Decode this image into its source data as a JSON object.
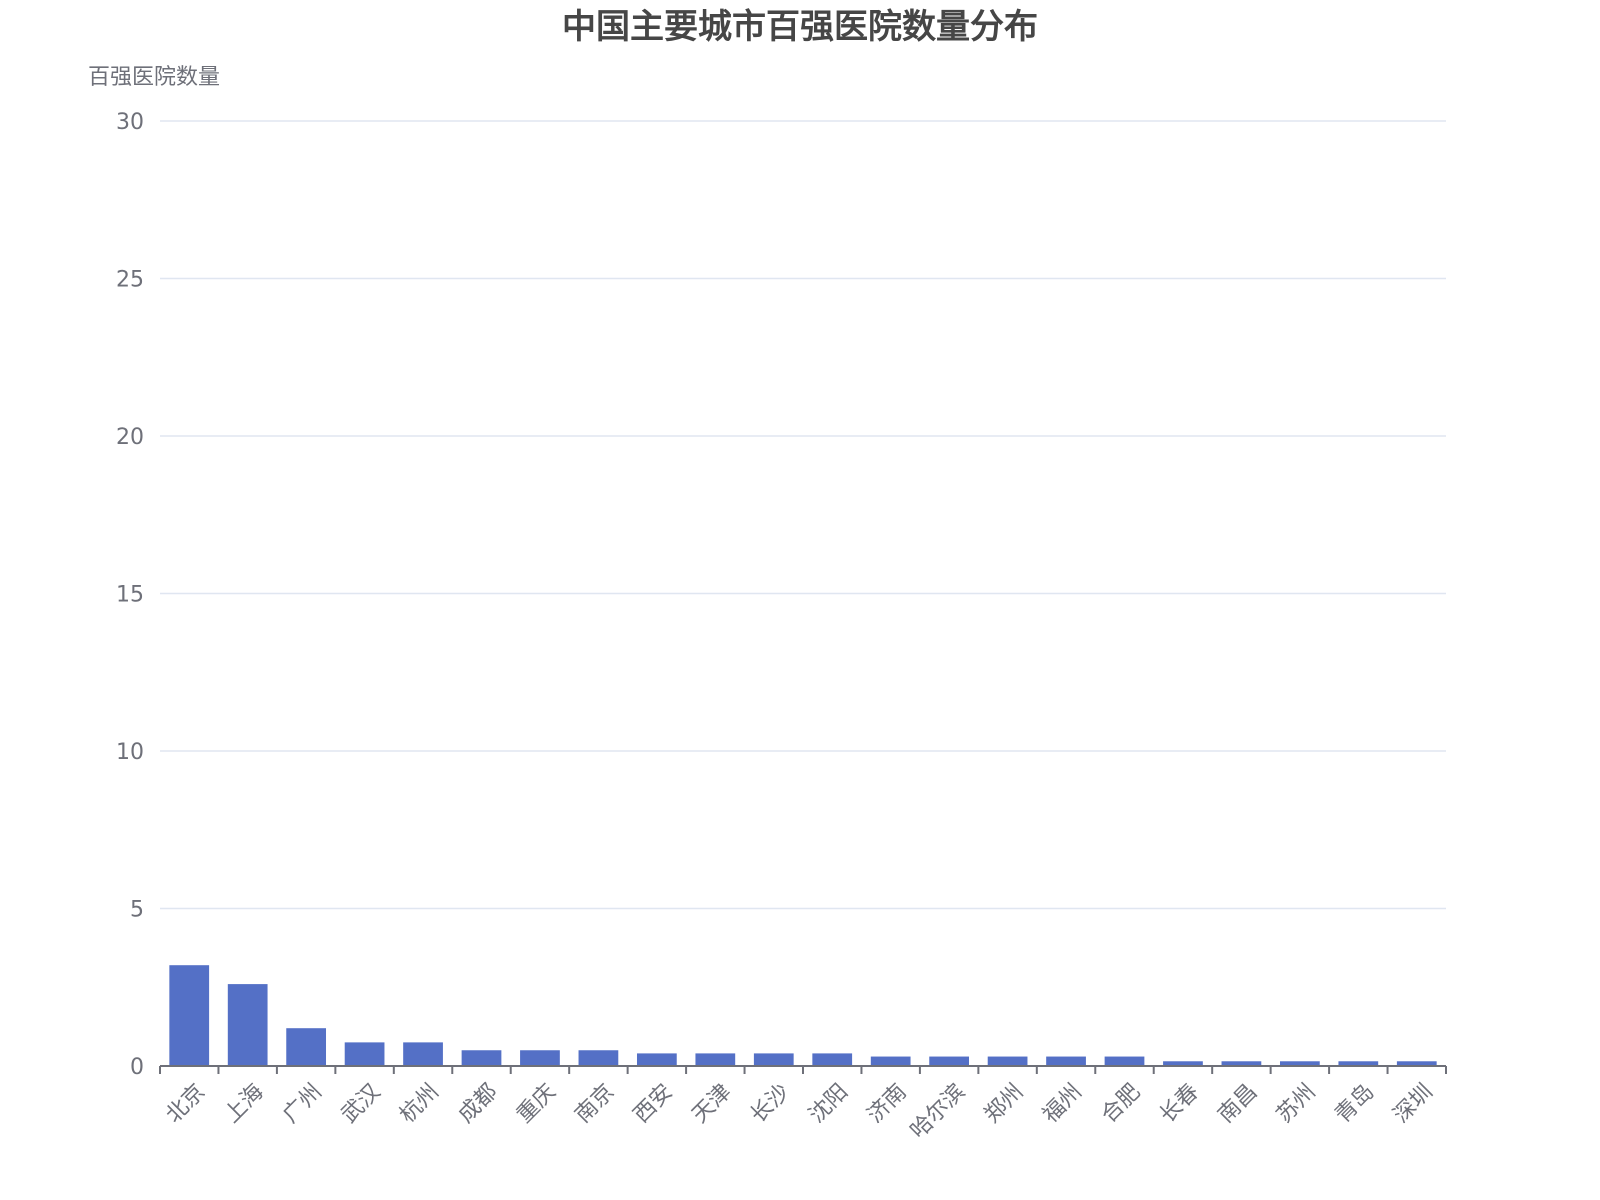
{
  "chart_data": {
    "type": "bar",
    "title": "中国主要城市百强医院数量分布",
    "ylabel": "百强医院数量",
    "xlabel": "",
    "ylim": [
      0,
      30
    ],
    "yticks": [
      0,
      5,
      10,
      15,
      20,
      25,
      30
    ],
    "grid": true,
    "bar_color": "#5470c6",
    "categories": [
      "北京",
      "上海",
      "广州",
      "武汉",
      "杭州",
      "成都",
      "重庆",
      "南京",
      "西安",
      "天津",
      "长沙",
      "沈阳",
      "济南",
      "哈尔滨",
      "郑州",
      "福州",
      "合肥",
      "长春",
      "南昌",
      "苏州",
      "青岛",
      "深圳"
    ],
    "values": [
      3.2,
      2.6,
      1.2,
      0.75,
      0.75,
      0.5,
      0.5,
      0.5,
      0.4,
      0.4,
      0.4,
      0.4,
      0.3,
      0.3,
      0.3,
      0.3,
      0.3,
      0.15,
      0.15,
      0.15,
      0.15,
      0.15
    ]
  }
}
